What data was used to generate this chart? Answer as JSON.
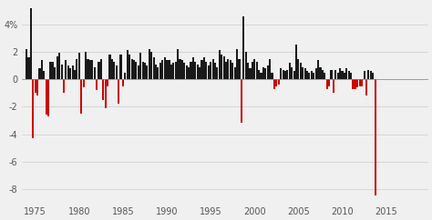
{
  "title": "",
  "ylabel": "",
  "xlabel": "",
  "background_color": "#f0f0f0",
  "positive_color": "#1a1a1a",
  "negative_color": "#cc0000",
  "ylim": [
    -9,
    5.5
  ],
  "yticks": [
    4,
    2,
    0,
    -2,
    -4,
    -6,
    -8
  ],
  "ytick_labels": [
    "4%",
    "2",
    "0",
    "-2",
    "-4",
    "-6",
    "-8"
  ],
  "xtick_labels": [
    "1975",
    "1980",
    "1985",
    "1990",
    "1995",
    "2000",
    "2005",
    "2010",
    "2015"
  ],
  "xtick_years": [
    1975,
    1980,
    1985,
    1990,
    1995,
    2000,
    2005,
    2010,
    2015
  ],
  "start_year": 1974.0,
  "bar_width": 0.22,
  "values": [
    2.2,
    1.6,
    5.2,
    -4.3,
    -1.0,
    -1.2,
    0.8,
    1.4,
    0.6,
    -2.6,
    -2.7,
    1.3,
    1.3,
    0.9,
    1.7,
    1.9,
    1.1,
    -1.0,
    1.4,
    1.0,
    0.8,
    1.0,
    0.7,
    1.5,
    1.9,
    -2.5,
    -0.6,
    2.0,
    1.5,
    1.4,
    1.4,
    0.9,
    -0.8,
    1.3,
    1.5,
    -1.5,
    -2.1,
    -0.5,
    1.8,
    1.5,
    1.3,
    1.0,
    -1.8,
    1.8,
    -0.5,
    0.5,
    2.1,
    1.8,
    1.5,
    1.4,
    1.3,
    1.0,
    1.9,
    1.3,
    1.2,
    1.0,
    2.2,
    2.0,
    1.6,
    1.1,
    0.9,
    1.2,
    1.4,
    1.6,
    1.4,
    1.4,
    1.1,
    1.2,
    1.3,
    2.2,
    1.5,
    1.4,
    1.2,
    1.0,
    0.9,
    1.3,
    1.6,
    1.3,
    1.1,
    0.9,
    1.4,
    1.6,
    1.3,
    1.0,
    1.3,
    1.5,
    1.2,
    0.9,
    2.1,
    1.8,
    1.7,
    1.3,
    1.5,
    1.4,
    1.2,
    0.9,
    2.2,
    1.5,
    -3.2,
    4.6,
    2.0,
    1.2,
    0.8,
    1.3,
    1.5,
    1.3,
    0.7,
    0.5,
    0.9,
    0.8,
    1.0,
    1.5,
    0.5,
    -0.7,
    -0.5,
    -0.4,
    0.8,
    0.7,
    0.6,
    0.7,
    1.2,
    0.9,
    0.6,
    2.5,
    1.5,
    1.2,
    0.9,
    0.8,
    0.6,
    0.5,
    0.6,
    0.5,
    0.8,
    1.4,
    0.9,
    0.7,
    0.5,
    -0.7,
    -0.5,
    0.7,
    -1.0,
    0.7,
    0.5,
    0.8,
    0.6,
    0.5,
    0.8,
    0.6,
    0.5,
    -0.7,
    -0.7,
    -0.6,
    -0.5,
    -0.5,
    0.6,
    -1.2,
    0.7,
    0.6,
    0.5,
    -8.5
  ]
}
